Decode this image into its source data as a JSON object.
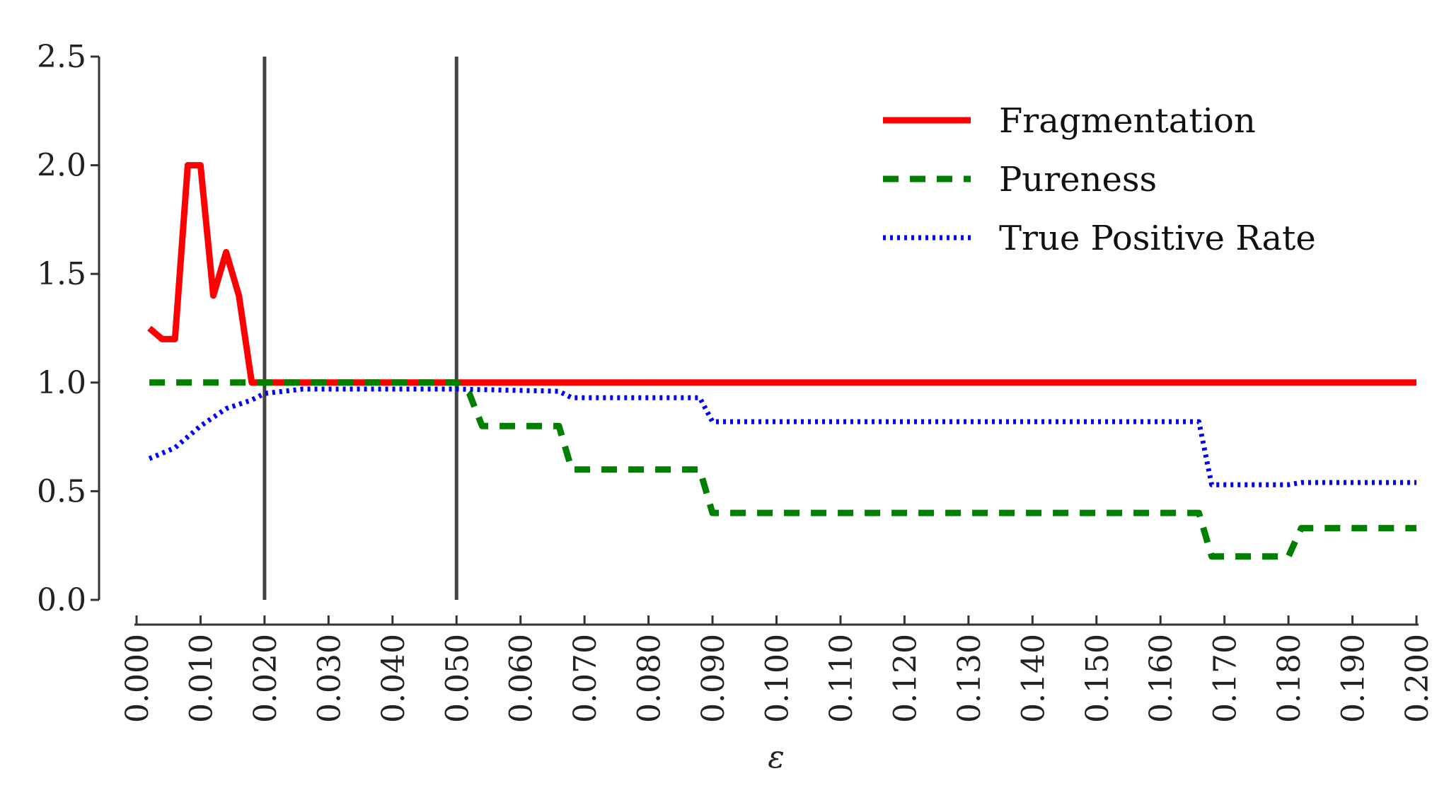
{
  "chart_data": {
    "type": "line",
    "xlabel": "ε",
    "ylabel": "",
    "xlim": [
      0.0,
      0.2
    ],
    "ylim": [
      0.0,
      2.5
    ],
    "x_ticks": [
      "0.000",
      "0.010",
      "0.020",
      "0.030",
      "0.040",
      "0.050",
      "0.060",
      "0.070",
      "0.080",
      "0.090",
      "0.100",
      "0.110",
      "0.120",
      "0.130",
      "0.140",
      "0.150",
      "0.160",
      "0.170",
      "0.180",
      "0.190",
      "0.200"
    ],
    "y_ticks": [
      "0.0",
      "0.5",
      "1.0",
      "1.5",
      "2.0",
      "2.5"
    ],
    "legend_position": "top-right",
    "reference_lines_x": [
      0.02,
      0.05
    ],
    "series": [
      {
        "name": "Fragmentation",
        "color": "#ff0000",
        "style": "solid",
        "x": [
          0.002,
          0.004,
          0.006,
          0.008,
          0.01,
          0.012,
          0.014,
          0.016,
          0.018,
          0.02,
          0.2
        ],
        "y": [
          1.25,
          1.2,
          1.2,
          2.0,
          2.0,
          1.4,
          1.6,
          1.4,
          1.0,
          1.0,
          1.0
        ]
      },
      {
        "name": "Pureness",
        "color": "#008000",
        "style": "dashed",
        "x": [
          0.002,
          0.05,
          0.052,
          0.054,
          0.066,
          0.068,
          0.088,
          0.09,
          0.166,
          0.168,
          0.18,
          0.182,
          0.2
        ],
        "y": [
          1.0,
          1.0,
          0.95,
          0.8,
          0.8,
          0.6,
          0.6,
          0.4,
          0.4,
          0.2,
          0.2,
          0.33,
          0.33
        ]
      },
      {
        "name": "True Positive Rate",
        "color": "#0000ff",
        "style": "dotted",
        "x": [
          0.002,
          0.006,
          0.01,
          0.014,
          0.018,
          0.02,
          0.026,
          0.05,
          0.066,
          0.068,
          0.088,
          0.09,
          0.166,
          0.168,
          0.18,
          0.182,
          0.2
        ],
        "y": [
          0.65,
          0.7,
          0.8,
          0.88,
          0.92,
          0.95,
          0.97,
          0.97,
          0.96,
          0.93,
          0.93,
          0.82,
          0.82,
          0.53,
          0.53,
          0.54,
          0.54
        ]
      }
    ]
  }
}
